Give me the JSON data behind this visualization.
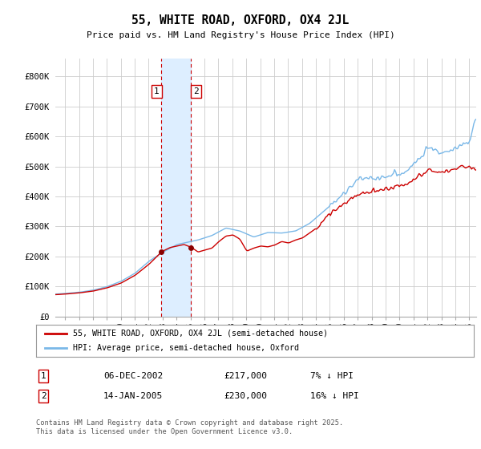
{
  "title": "55, WHITE ROAD, OXFORD, OX4 2JL",
  "subtitle": "Price paid vs. HM Land Registry's House Price Index (HPI)",
  "ylabel_ticks": [
    "£0",
    "£100K",
    "£200K",
    "£300K",
    "£400K",
    "£500K",
    "£600K",
    "£700K",
    "£800K"
  ],
  "ytick_values": [
    0,
    100000,
    200000,
    300000,
    400000,
    500000,
    600000,
    700000,
    800000
  ],
  "ylim": [
    0,
    860000
  ],
  "xlim_start": 1995.3,
  "xlim_end": 2025.5,
  "hpi_color": "#7ab8e8",
  "price_color": "#cc0000",
  "highlight_color": "#ddeeff",
  "vline_color": "#cc0000",
  "transaction1_x": 2002.92,
  "transaction2_x": 2005.04,
  "transaction1_price": 217000,
  "transaction2_price": 230000,
  "legend_label1": "55, WHITE ROAD, OXFORD, OX4 2JL (semi-detached house)",
  "legend_label2": "HPI: Average price, semi-detached house, Oxford",
  "table_row1_num": "1",
  "table_row1_date": "06-DEC-2002",
  "table_row1_price": "£217,000",
  "table_row1_note": "7% ↓ HPI",
  "table_row2_num": "2",
  "table_row2_date": "14-JAN-2005",
  "table_row2_price": "£230,000",
  "table_row2_note": "16% ↓ HPI",
  "footer": "Contains HM Land Registry data © Crown copyright and database right 2025.\nThis data is licensed under the Open Government Licence v3.0.",
  "background_color": "#ffffff",
  "grid_color": "#cccccc"
}
